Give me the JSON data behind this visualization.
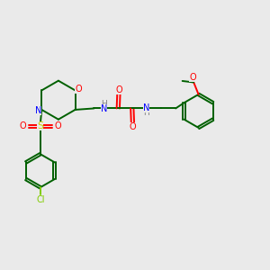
{
  "background_color": "#eaeaea",
  "colors": {
    "bond": "#006000",
    "N": "#0000ff",
    "O": "#ff0000",
    "S": "#cccc00",
    "Cl": "#80cc00",
    "H": "#808080"
  },
  "figsize": [
    3.0,
    3.0
  ],
  "dpi": 100
}
